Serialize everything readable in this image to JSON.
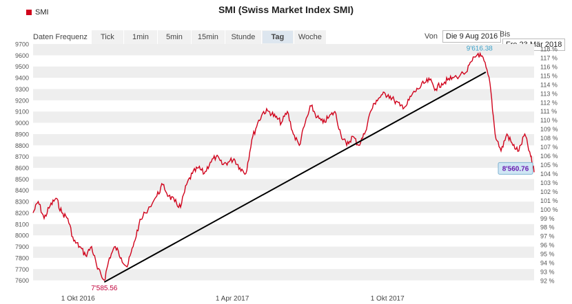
{
  "title": "SMI (Swiss Market Index SMI)",
  "legend_label": "SMI",
  "toolbar": {
    "label": "Daten Frequenz",
    "buttons": [
      "Tick",
      "1min",
      "5min",
      "15min",
      "Stunde",
      "Tag",
      "Woche"
    ],
    "active": "Tag"
  },
  "range": {
    "from_label": "Von",
    "from_value": "Die 9 Aug 2016",
    "to_label": "Bis",
    "to_value": "Fre 23 Mär 2018"
  },
  "colors": {
    "series": "#d0021b",
    "trend": "#000000",
    "band": "#eeeeee",
    "max_label": "#3aa0c8",
    "min_label": "#c0003a",
    "last_label": "#6a1bb0"
  },
  "chart_data": {
    "type": "line",
    "series": [
      {
        "name": "SMI",
        "points": [
          [
            "2016-08-09",
            8200
          ],
          [
            "2016-08-15",
            8300
          ],
          [
            "2016-08-22",
            8150
          ],
          [
            "2016-08-29",
            8260
          ],
          [
            "2016-09-05",
            8330
          ],
          [
            "2016-09-12",
            8200
          ],
          [
            "2016-09-19",
            8150
          ],
          [
            "2016-09-26",
            7950
          ],
          [
            "2016-10-03",
            7900
          ],
          [
            "2016-10-10",
            7820
          ],
          [
            "2016-10-17",
            7900
          ],
          [
            "2016-10-24",
            7700
          ],
          [
            "2016-11-01",
            7600
          ],
          [
            "2016-11-07",
            7800
          ],
          [
            "2016-11-14",
            7900
          ],
          [
            "2016-11-21",
            7800
          ],
          [
            "2016-11-28",
            7720
          ],
          [
            "2016-12-05",
            7900
          ],
          [
            "2016-12-12",
            8100
          ],
          [
            "2016-12-19",
            8200
          ],
          [
            "2017-01-02",
            8350
          ],
          [
            "2017-01-09",
            8450
          ],
          [
            "2017-01-16",
            8350
          ],
          [
            "2017-01-23",
            8300
          ],
          [
            "2017-01-30",
            8250
          ],
          [
            "2017-02-06",
            8450
          ],
          [
            "2017-02-13",
            8550
          ],
          [
            "2017-02-20",
            8600
          ],
          [
            "2017-02-27",
            8550
          ],
          [
            "2017-03-06",
            8650
          ],
          [
            "2017-03-13",
            8700
          ],
          [
            "2017-03-20",
            8630
          ],
          [
            "2017-03-27",
            8650
          ],
          [
            "2017-04-03",
            8680
          ],
          [
            "2017-04-10",
            8600
          ],
          [
            "2017-04-17",
            8550
          ],
          [
            "2017-04-24",
            8850
          ],
          [
            "2017-05-01",
            9000
          ],
          [
            "2017-05-08",
            9100
          ],
          [
            "2017-05-15",
            9100
          ],
          [
            "2017-05-22",
            9050
          ],
          [
            "2017-05-29",
            9000
          ],
          [
            "2017-06-05",
            9100
          ],
          [
            "2017-06-12",
            8900
          ],
          [
            "2017-06-19",
            8800
          ],
          [
            "2017-06-26",
            9000
          ],
          [
            "2017-07-03",
            9150
          ],
          [
            "2017-07-10",
            9050
          ],
          [
            "2017-07-17",
            9000
          ],
          [
            "2017-07-24",
            9050
          ],
          [
            "2017-07-31",
            9100
          ],
          [
            "2017-08-07",
            8900
          ],
          [
            "2017-08-14",
            8800
          ],
          [
            "2017-08-21",
            8880
          ],
          [
            "2017-08-28",
            8800
          ],
          [
            "2017-09-04",
            8900
          ],
          [
            "2017-09-11",
            9100
          ],
          [
            "2017-09-18",
            9200
          ],
          [
            "2017-09-25",
            9250
          ],
          [
            "2017-10-02",
            9250
          ],
          [
            "2017-10-09",
            9200
          ],
          [
            "2017-10-16",
            9150
          ],
          [
            "2017-10-23",
            9150
          ],
          [
            "2017-10-30",
            9250
          ],
          [
            "2017-11-06",
            9300
          ],
          [
            "2017-11-13",
            9350
          ],
          [
            "2017-11-20",
            9380
          ],
          [
            "2017-11-27",
            9300
          ],
          [
            "2017-12-04",
            9350
          ],
          [
            "2017-12-11",
            9380
          ],
          [
            "2017-12-18",
            9400
          ],
          [
            "2018-01-02",
            9450
          ],
          [
            "2018-01-09",
            9550
          ],
          [
            "2018-01-16",
            9616
          ],
          [
            "2018-01-23",
            9550
          ],
          [
            "2018-01-30",
            9350
          ],
          [
            "2018-02-05",
            8900
          ],
          [
            "2018-02-12",
            8750
          ],
          [
            "2018-02-19",
            8900
          ],
          [
            "2018-02-26",
            8800
          ],
          [
            "2018-03-05",
            8750
          ],
          [
            "2018-03-12",
            8900
          ],
          [
            "2018-03-19",
            8700
          ],
          [
            "2018-03-23",
            8561
          ]
        ]
      }
    ],
    "trendline": [
      [
        "2016-11-01",
        7585
      ],
      [
        "2018-01-25",
        9450
      ]
    ],
    "annotations": {
      "max_label": "9'616.38",
      "max_point": [
        "2018-01-16",
        9616
      ],
      "min_label": "7'585.56",
      "min_point": [
        "2016-11-01",
        7585
      ],
      "last_label": "8'560.76",
      "last_point": [
        "2018-03-23",
        8561
      ]
    },
    "y_left": {
      "min": 7500,
      "max": 9700,
      "ticks": [
        7600,
        7700,
        7800,
        7900,
        8000,
        8100,
        8200,
        8300,
        8400,
        8500,
        8600,
        8700,
        8800,
        8900,
        9000,
        9100,
        9200,
        9300,
        9400,
        9500,
        9600,
        9700
      ]
    },
    "y_right": {
      "ticks": [
        "92 %",
        "93 %",
        "94 %",
        "95 %",
        "96 %",
        "97 %",
        "98 %",
        "99 %",
        "100 %",
        "101 %",
        "102 %",
        "103 %",
        "104 %",
        "105 %",
        "106 %",
        "107 %",
        "108 %",
        "109 %",
        "110 %",
        "111 %",
        "112 %",
        "113 %",
        "114 %",
        "115 %",
        "116 %",
        "117 %",
        "118 %"
      ]
    },
    "x_ticks": [
      [
        "2016-10-01",
        "1 Okt 2016"
      ],
      [
        "2017-04-01",
        "1 Apr 2017"
      ],
      [
        "2017-10-01",
        "1 Okt 2017"
      ]
    ],
    "x_range": [
      "2016-08-09",
      "2018-03-23"
    ],
    "grid": "alternating horizontal bands"
  }
}
